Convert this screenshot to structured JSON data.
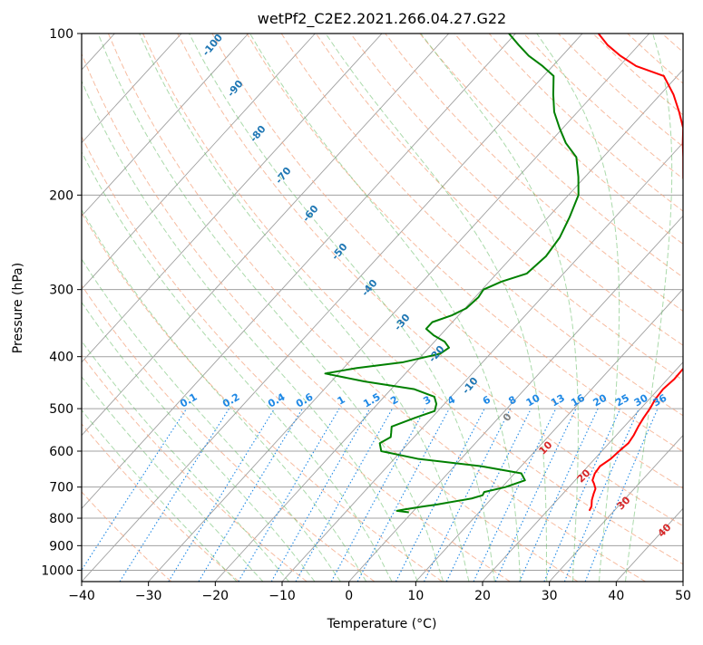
{
  "chart_data": {
    "type": "line",
    "title": "wetPf2_C2E2.2021.266.04.27.G22",
    "xlabel": "Temperature (°C)",
    "ylabel": "Pressure (hPa)",
    "xlim": [
      -40,
      50
    ],
    "ylim": [
      1050,
      100
    ],
    "yscale": "log",
    "x_ticks": [
      -40,
      -30,
      -20,
      -10,
      0,
      10,
      20,
      30,
      40,
      50
    ],
    "y_ticks": [
      100,
      200,
      300,
      400,
      500,
      600,
      700,
      800,
      900,
      1000
    ],
    "grid": true,
    "skew": "skew-T log-p",
    "colors": {
      "temperature": "#ff0000",
      "dewpoint": "#008000",
      "isotherm_grid": "#a0a0a0",
      "dry_adiabat": "#f4a582",
      "moist_adiabat": "#66bb66",
      "mixing_ratio": "#1e88e5",
      "dry_adiabat_label": "#d62728",
      "moist_label": "#1f77b4",
      "zero_label": "#808080"
    },
    "series": [
      {
        "name": "temperature",
        "points": [
          [
            26.3,
            775
          ],
          [
            26.0,
            760
          ],
          [
            25.2,
            740
          ],
          [
            24.6,
            720
          ],
          [
            24.2,
            705
          ],
          [
            23.3,
            690
          ],
          [
            22.6,
            680
          ],
          [
            22.0,
            660
          ],
          [
            21.8,
            640
          ],
          [
            22.4,
            620
          ],
          [
            22.6,
            600
          ],
          [
            22.9,
            580
          ],
          [
            22.6,
            560
          ],
          [
            22.1,
            540
          ],
          [
            21.7,
            520
          ],
          [
            21.4,
            500
          ],
          [
            20.9,
            480
          ],
          [
            20.7,
            460
          ],
          [
            21.0,
            440
          ],
          [
            20.9,
            420
          ],
          [
            20.3,
            400
          ],
          [
            19.4,
            380
          ],
          [
            18.2,
            360
          ],
          [
            16.7,
            340
          ],
          [
            15.0,
            320
          ],
          [
            13.0,
            300
          ],
          [
            10.0,
            280
          ],
          [
            6.5,
            260
          ],
          [
            3.5,
            240
          ],
          [
            0.5,
            220
          ],
          [
            -2.5,
            200
          ],
          [
            -5.3,
            185
          ],
          [
            -8.0,
            170
          ],
          [
            -10.0,
            160
          ],
          [
            -12.0,
            150
          ],
          [
            -14.8,
            140
          ],
          [
            -18.0,
            130
          ],
          [
            -22.0,
            120
          ],
          [
            -27.5,
            115
          ],
          [
            -31.3,
            110
          ],
          [
            -34.7,
            105
          ],
          [
            -37.6,
            100
          ]
        ]
      },
      {
        "name": "dewpoint",
        "points": [
          [
            -0.5,
            780
          ],
          [
            -2.5,
            775
          ],
          [
            -1.5,
            770
          ],
          [
            1.0,
            760
          ],
          [
            2.5,
            755
          ],
          [
            7.0,
            735
          ],
          [
            8.2,
            725
          ],
          [
            8.0,
            715
          ],
          [
            10.5,
            700
          ],
          [
            12.5,
            680
          ],
          [
            11.0,
            660
          ],
          [
            4.0,
            640
          ],
          [
            -6.5,
            620
          ],
          [
            -13.0,
            600
          ],
          [
            -14.3,
            580
          ],
          [
            -13.5,
            565
          ],
          [
            -14.0,
            555
          ],
          [
            -14.8,
            540
          ],
          [
            -12.5,
            520
          ],
          [
            -10.5,
            505
          ],
          [
            -11.2,
            490
          ],
          [
            -12.5,
            475
          ],
          [
            -16.5,
            460
          ],
          [
            -25.0,
            445
          ],
          [
            -32.0,
            430
          ],
          [
            -28.0,
            420
          ],
          [
            -22.0,
            410
          ],
          [
            -17.5,
            395
          ],
          [
            -17.0,
            385
          ],
          [
            -18.5,
            375
          ],
          [
            -21.0,
            365
          ],
          [
            -23.0,
            355
          ],
          [
            -23.0,
            345
          ],
          [
            -21.0,
            335
          ],
          [
            -19.8,
            325
          ],
          [
            -19.5,
            310
          ],
          [
            -19.8,
            300
          ],
          [
            -18.2,
            290
          ],
          [
            -15.5,
            280
          ],
          [
            -15.0,
            260
          ],
          [
            -15.5,
            240
          ],
          [
            -16.8,
            220
          ],
          [
            -18.5,
            200
          ],
          [
            -21.0,
            185
          ],
          [
            -24.0,
            170
          ],
          [
            -27.5,
            160
          ],
          [
            -30.5,
            150
          ],
          [
            -33.5,
            140
          ],
          [
            -36.0,
            130
          ],
          [
            -38.5,
            120
          ],
          [
            -41.5,
            115
          ],
          [
            -45.0,
            110
          ],
          [
            -48.0,
            105
          ],
          [
            -51.0,
            100
          ]
        ]
      }
    ],
    "mixing_ratio_labels": [
      "0.1",
      "0.2",
      "0.4",
      "0.6",
      "1",
      "1.5",
      "2",
      "3",
      "4",
      "6",
      "8",
      "10",
      "13",
      "16",
      "20",
      "25",
      "30",
      "36"
    ],
    "moist_adiabat_labels": [
      "-100",
      "-90",
      "-80",
      "-70",
      "-60",
      "-50",
      "-40",
      "-30",
      "-20",
      "-10",
      "0"
    ],
    "dry_adiabat_labels": [
      "10",
      "20",
      "30",
      "40"
    ]
  }
}
